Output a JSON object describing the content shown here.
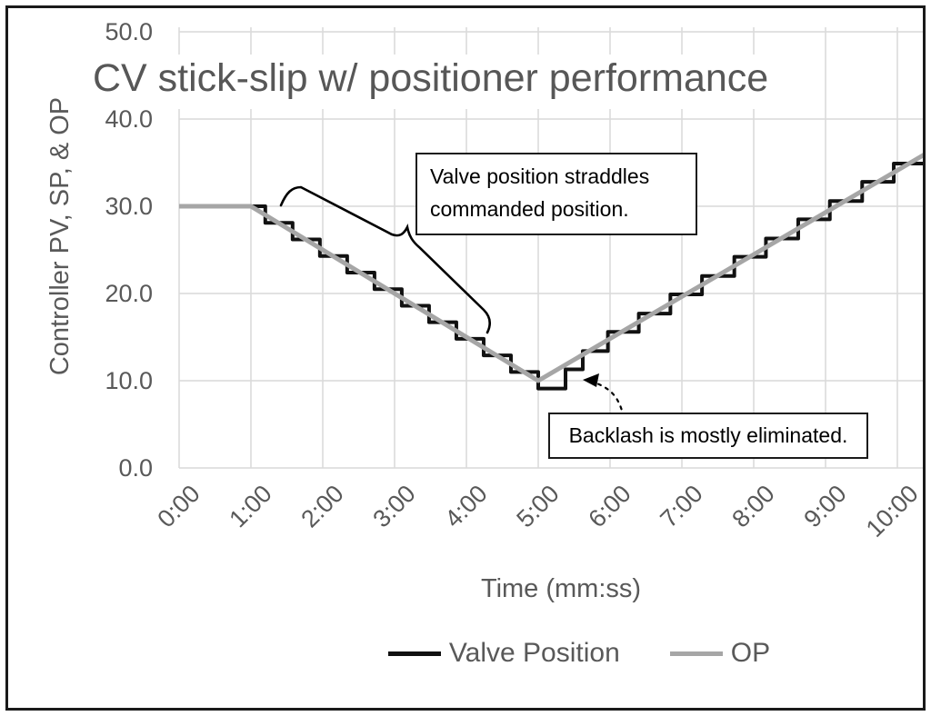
{
  "figure": {
    "title": "CV stick-slip w/ positioner performance",
    "y_axis_label": "Controller PV, SP, & OP",
    "x_axis_label": "Time (mm:ss)"
  },
  "annotations": {
    "straddle_label": "Valve position straddles\ncommanded position.",
    "backlash_label": "Backlash is mostly eliminated."
  },
  "legend": {
    "items": [
      {
        "label": "Valve Position",
        "color": "#111111"
      },
      {
        "label": "OP",
        "color": "#a6a6a6"
      }
    ]
  },
  "colors": {
    "text": "#595959",
    "title_text": "#575757",
    "grid": "#d9d9d9",
    "valve": "#111111",
    "op": "#a6a6a6",
    "annotation": "#000000"
  },
  "chart_data": {
    "type": "line",
    "title": "CV stick-slip w/ positioner performance",
    "xlabel": "Time (mm:ss)",
    "ylabel": "Controller PV, SP, & OP",
    "ylim": [
      0,
      50
    ],
    "xlim_minutes": [
      0,
      10.37
    ],
    "grid": true,
    "legend_position": "bottom",
    "y_ticks": [
      {
        "value": 0,
        "label": "0.0"
      },
      {
        "value": 10,
        "label": "10.0"
      },
      {
        "value": 20,
        "label": "20.0"
      },
      {
        "value": 30,
        "label": "30.0"
      },
      {
        "value": 40,
        "label": "40.0"
      },
      {
        "value": 50,
        "label": "50.0"
      }
    ],
    "x_ticks": [
      {
        "minutes": 0,
        "label": "0:00"
      },
      {
        "minutes": 1,
        "label": "1:00"
      },
      {
        "minutes": 2,
        "label": "2:00"
      },
      {
        "minutes": 3,
        "label": "3:00"
      },
      {
        "minutes": 4,
        "label": "4:00"
      },
      {
        "minutes": 5,
        "label": "5:00"
      },
      {
        "minutes": 6,
        "label": "6:00"
      },
      {
        "minutes": 7,
        "label": "7:00"
      },
      {
        "minutes": 8,
        "label": "8:00"
      },
      {
        "minutes": 9,
        "label": "9:00"
      },
      {
        "minutes": 10,
        "label": "10:00"
      }
    ],
    "series": [
      {
        "name": "Valve Position",
        "type": "step",
        "color": "#111111",
        "width": 4,
        "points": [
          [
            0,
            30
          ],
          [
            1.2,
            28.1
          ],
          [
            1.58,
            26.2
          ],
          [
            1.96,
            24.3
          ],
          [
            2.34,
            22.4
          ],
          [
            2.72,
            20.5
          ],
          [
            3.1,
            18.6
          ],
          [
            3.48,
            16.7
          ],
          [
            3.86,
            14.8
          ],
          [
            4.24,
            12.9
          ],
          [
            4.62,
            11.0
          ],
          [
            5.0,
            9.1
          ],
          [
            5.38,
            11.3
          ],
          [
            5.62,
            13.4
          ],
          [
            5.97,
            15.6
          ],
          [
            6.4,
            17.7
          ],
          [
            6.84,
            19.9
          ],
          [
            7.28,
            22.0
          ],
          [
            7.73,
            24.2
          ],
          [
            8.17,
            26.3
          ],
          [
            8.62,
            28.5
          ],
          [
            9.06,
            30.6
          ],
          [
            9.51,
            32.8
          ],
          [
            9.95,
            34.9
          ]
        ]
      },
      {
        "name": "OP",
        "type": "line",
        "color": "#a6a6a6",
        "width": 5,
        "points": [
          [
            0,
            30
          ],
          [
            1,
            30
          ],
          [
            5,
            10
          ],
          [
            10.37,
            35.9
          ]
        ]
      }
    ]
  }
}
